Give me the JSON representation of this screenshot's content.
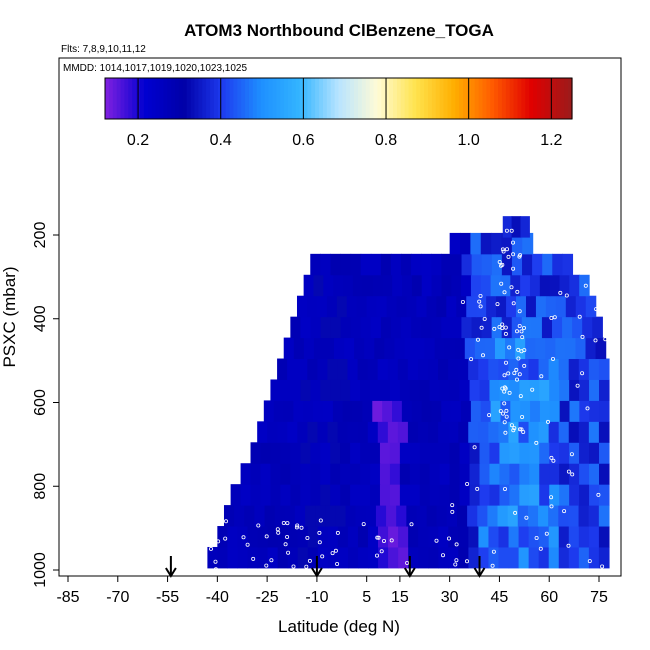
{
  "chart_data": {
    "type": "heatmap",
    "title": "ATOM3 Northbound ClBenzene_TOGA",
    "flights_label": "Flts: 7,8,9,10,11,12",
    "dates_label": "MMDD: 1014,1017,1019,1020,1023,1025",
    "xlabel": "Latitude (deg N)",
    "ylabel": "PSXC (mbar)",
    "xlim": [
      -85,
      85
    ],
    "ylim": [
      1010,
      60
    ],
    "y_reversed": true,
    "x_ticks": [
      "-85",
      "-70",
      "-55",
      "-40",
      "-25",
      "-10",
      "5",
      "15",
      "30",
      "45",
      "60",
      "75"
    ],
    "x_tick_values": [
      -85,
      -70,
      -55,
      -40,
      -25,
      -10,
      5,
      15,
      30,
      45,
      60,
      75
    ],
    "y_ticks": [
      "200",
      "400",
      "600",
      "800",
      "1000"
    ],
    "y_tick_values": [
      200,
      400,
      600,
      800,
      1000
    ],
    "colorbar": {
      "min": 0.12,
      "max": 1.25,
      "ticks": [
        "0.2",
        "0.4",
        "0.6",
        "0.8",
        "1.0",
        "1.2"
      ],
      "tick_values": [
        0.2,
        0.4,
        0.6,
        0.8,
        1.0,
        1.2
      ],
      "colors": [
        "#7b1fe0",
        "#0000d0",
        "#0000a8",
        "#1e3cf0",
        "#1e90ff",
        "#33b5ff",
        "#b8e4ff",
        "#fffbd6",
        "#ffe34d",
        "#ffae00",
        "#ff5a00",
        "#e00000",
        "#9e1a1a"
      ]
    },
    "arrows_latitude": [
      -54,
      -10,
      18,
      39
    ],
    "band_pressure_extents": [
      {
        "p": 970,
        "lat_min": -43,
        "lat_max": 78
      },
      {
        "p": 920,
        "lat_min": -40,
        "lat_max": 78
      },
      {
        "p": 870,
        "lat_min": -38,
        "lat_max": 78
      },
      {
        "p": 820,
        "lat_min": -36,
        "lat_max": 78
      },
      {
        "p": 770,
        "lat_min": -33,
        "lat_max": 78
      },
      {
        "p": 720,
        "lat_min": -30,
        "lat_max": 78
      },
      {
        "p": 670,
        "lat_min": -28,
        "lat_max": 78
      },
      {
        "p": 620,
        "lat_min": -26,
        "lat_max": 78
      },
      {
        "p": 570,
        "lat_min": -24,
        "lat_max": 78
      },
      {
        "p": 520,
        "lat_min": -22,
        "lat_max": 78
      },
      {
        "p": 470,
        "lat_min": -20,
        "lat_max": 77
      },
      {
        "p": 420,
        "lat_min": -18,
        "lat_max": 76
      },
      {
        "p": 370,
        "lat_min": -16,
        "lat_max": 74
      },
      {
        "p": 320,
        "lat_min": -14,
        "lat_max": 72
      },
      {
        "p": 270,
        "lat_min": -12,
        "lat_max": 67
      },
      {
        "p": 220,
        "lat_min": 30,
        "lat_max": 55
      },
      {
        "p": 180,
        "lat_min": 46,
        "lat_max": 54
      }
    ],
    "grid": false
  }
}
